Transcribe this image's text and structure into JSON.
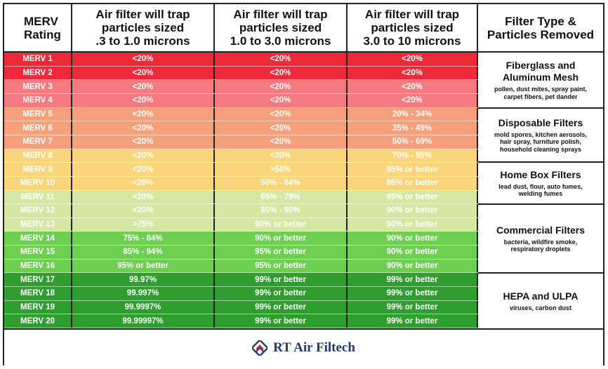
{
  "headers": {
    "rating": "MERV\nRating",
    "col1": "Air filter will trap\nparticles sized\n.3 to 1.0 microns",
    "col2": "Air filter will trap\nparticles sized\n1.0 to 3.0 microns",
    "col3": "Air filter will trap\nparticles sized\n3.0 to 10 microns",
    "type": "Filter Type &\nParticles Removed"
  },
  "rows": [
    {
      "rating": "MERV 1",
      "c1": "<20%",
      "c2": "<20%",
      "c3": "<20%",
      "color": "#ee2a3a"
    },
    {
      "rating": "MERV 2",
      "c1": "<20%",
      "c2": "<20%",
      "c3": "<20%",
      "color": "#ee2a3a"
    },
    {
      "rating": "MERV 3",
      "c1": "<20%",
      "c2": "<20%",
      "c3": "<20%",
      "color": "#f47a80"
    },
    {
      "rating": "MERV 4",
      "c1": "<20%",
      "c2": "<20%",
      "c3": "<20%",
      "color": "#f47a80"
    },
    {
      "rating": "MERV 5",
      "c1": "<20%",
      "c2": "<20%",
      "c3": "20% - 34%",
      "color": "#f5a07a"
    },
    {
      "rating": "MERV 6",
      "c1": "<20%",
      "c2": "<20%",
      "c3": "35% - 49%",
      "color": "#f5a07a"
    },
    {
      "rating": "MERV 7",
      "c1": "<20%",
      "c2": "<20%",
      "c3": "50% - 69%",
      "color": "#f5a07a"
    },
    {
      "rating": "MERV 8",
      "c1": "<20%",
      "c2": "<20%",
      "c3": "70% - 85%",
      "color": "#fbd57a"
    },
    {
      "rating": "MERV 9",
      "c1": "<20%",
      "c2": ">50%",
      "c3": "85% or better",
      "color": "#fbd57a"
    },
    {
      "rating": "MERV 10",
      "c1": "<20%",
      "c2": "50% - 64%",
      "c3": "85% or better",
      "color": "#fbd57a"
    },
    {
      "rating": "MERV 11",
      "c1": "<20%",
      "c2": "65% - 79%",
      "c3": "85% or better",
      "color": "#d6e7a2"
    },
    {
      "rating": "MERV 12",
      "c1": "<20%",
      "c2": "80% - 90%",
      "c3": "90% or better",
      "color": "#d6e7a2"
    },
    {
      "rating": "MERV 13",
      "c1": ">75%",
      "c2": "90% or better",
      "c3": "90% or better",
      "color": "#d6e7a2"
    },
    {
      "rating": "MERV 14",
      "c1": "75% - 84%",
      "c2": "90% or better",
      "c3": "90% or better",
      "color": "#6dcf50"
    },
    {
      "rating": "MERV 15",
      "c1": "85% - 94%",
      "c2": "95% or better",
      "c3": "90% or better",
      "color": "#6dcf50"
    },
    {
      "rating": "MERV 16",
      "c1": "95% or better",
      "c2": "95% or better",
      "c3": "90% or better",
      "color": "#6dcf50"
    },
    {
      "rating": "MERV 17",
      "c1": "99.97%",
      "c2": "99% or better",
      "c3": "99% or better",
      "color": "#2f9e2f"
    },
    {
      "rating": "MERV 18",
      "c1": "99.997%",
      "c2": "99% or better",
      "c3": "99% or better",
      "color": "#2f9e2f"
    },
    {
      "rating": "MERV 19",
      "c1": "99.9997%",
      "c2": "99% or better",
      "c3": "99% or better",
      "color": "#2f9e2f"
    },
    {
      "rating": "MERV 20",
      "c1": "99.99997%",
      "c2": "99% or better",
      "c3": "99% or better",
      "color": "#2f9e2f"
    }
  ],
  "filter_types": [
    {
      "title": "Fiberglass and\nAluminum Mesh",
      "desc": "pollen, dust mites, spray paint,\ncarpet fibers, pet dander"
    },
    {
      "title": "Disposable Filters",
      "desc": "mold spores, kitchen aerosols,\nhair spray, furniture polish,\nhousehold cleaning sprays"
    },
    {
      "title": "Home Box Filters",
      "desc": "lead dust, flour, auto fumes,\nwelding fumes"
    },
    {
      "title": "Commercial Filters",
      "desc": "bacteria, wildfire smoke,\nrespiratory droplets"
    },
    {
      "title": "HEPA and ULPA",
      "desc": "viruses, carbon dust"
    }
  ],
  "footer": {
    "brand": "RT Air Filtech"
  }
}
